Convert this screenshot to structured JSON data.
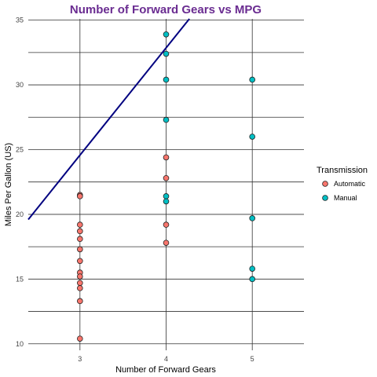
{
  "chart_data": {
    "type": "scatter",
    "title": "Number of Forward Gears vs MPG",
    "title_color": "#6a2c91",
    "xlabel": "Number of Forward Gears",
    "ylabel": "Miles Per Gallon (US)",
    "xlim": [
      2.4,
      5.6
    ],
    "ylim": [
      9.5,
      35.1
    ],
    "x_ticks": [
      3,
      4,
      5
    ],
    "y_ticks": [
      10,
      15,
      20,
      25,
      30,
      35
    ],
    "y_gridlines": [
      10,
      12.5,
      15,
      17.5,
      20,
      22.5,
      25,
      27.5,
      30,
      32.5,
      35
    ],
    "grid": true,
    "legend": {
      "title": "Transmission",
      "placement": "right"
    },
    "series": [
      {
        "name": "Automatic",
        "color": "#f8766d",
        "points": [
          [
            3,
            21.5
          ],
          [
            3,
            21.4
          ],
          [
            3,
            19.2
          ],
          [
            3,
            18.7
          ],
          [
            3,
            18.1
          ],
          [
            3,
            17.3
          ],
          [
            3,
            16.4
          ],
          [
            3,
            15.5
          ],
          [
            3,
            15.2
          ],
          [
            3,
            14.7
          ],
          [
            3,
            14.3
          ],
          [
            3,
            13.3
          ],
          [
            3,
            10.4
          ],
          [
            4,
            24.4
          ],
          [
            4,
            22.8
          ],
          [
            4,
            19.2
          ],
          [
            4,
            17.8
          ]
        ]
      },
      {
        "name": "Manual",
        "color": "#00bfc4",
        "points": [
          [
            4,
            33.9
          ],
          [
            4,
            32.4
          ],
          [
            4,
            30.4
          ],
          [
            4,
            27.3
          ],
          [
            4,
            21.4
          ],
          [
            4,
            21.0
          ],
          [
            5,
            30.4
          ],
          [
            5,
            26.0
          ],
          [
            5,
            19.7
          ],
          [
            5,
            15.8
          ],
          [
            5,
            15.0
          ]
        ]
      }
    ],
    "trend_line": {
      "color": "#000080",
      "from": [
        2.4,
        19.6
      ],
      "to": [
        4.27,
        35.1
      ]
    }
  }
}
